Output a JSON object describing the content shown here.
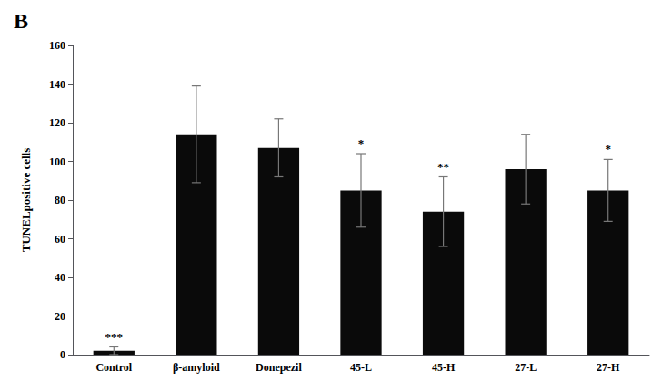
{
  "chart_data": {
    "type": "bar",
    "title": "B",
    "categories": [
      "Control",
      "β-amyloid",
      "Donepezil",
      "45-L",
      "45-H",
      "27-L",
      "27-H"
    ],
    "values": [
      2.0,
      114.0,
      107.0,
      85.0,
      74.0,
      96.0,
      85.0
    ],
    "errors": [
      2.0,
      25.0,
      15.0,
      19.0,
      18.0,
      18.0,
      16.0
    ],
    "color": "#0a0a0a",
    "ylabel": "TUNELpositive cells",
    "ylim": [
      0,
      160
    ],
    "yticks": [
      0,
      20,
      40,
      60,
      80,
      100,
      120,
      140,
      160
    ],
    "grid": false,
    "annotations": [
      {
        "x": "Control",
        "text": "***"
      },
      {
        "x": "45-L",
        "text": "*"
      },
      {
        "x": "45-H",
        "text": "**"
      },
      {
        "x": "27-H",
        "text": "*"
      }
    ]
  }
}
